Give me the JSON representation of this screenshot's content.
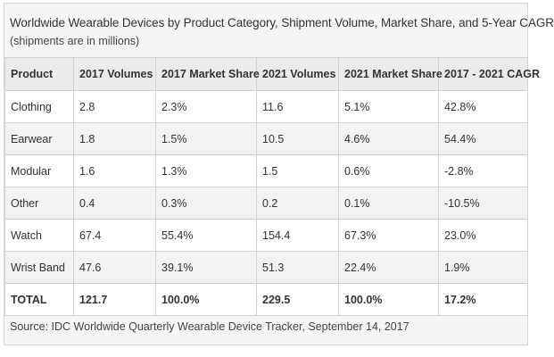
{
  "chart_data": {
    "type": "table",
    "title": "Worldwide Wearable Devices by Product Category, Shipment Volume, Market Share, and 5-Year CAGR",
    "subtitle": "(shipments are in millions)",
    "columns": [
      "Product",
      "2017 Volumes",
      "2017 Market Share",
      "2021 Volumes",
      "2021 Market Share",
      "2017 - 2021 CAGR"
    ],
    "rows": [
      [
        "Clothing",
        "2.8",
        "2.3%",
        "11.6",
        "5.1%",
        "42.8%"
      ],
      [
        "Earwear",
        "1.8",
        "1.5%",
        "10.5",
        "4.6%",
        "54.4%"
      ],
      [
        "Modular",
        "1.6",
        "1.3%",
        "1.5",
        "0.6%",
        "-2.8%"
      ],
      [
        "Other",
        "0.4",
        "0.3%",
        "0.2",
        "0.1%",
        "-10.5%"
      ],
      [
        "Watch",
        "67.4",
        "55.4%",
        "154.4",
        "67.3%",
        "23.0%"
      ],
      [
        "Wrist Band",
        "47.6",
        "39.1%",
        "51.3",
        "22.4%",
        "1.9%"
      ]
    ],
    "total_row": [
      "TOTAL",
      "121.7",
      "100.0%",
      "229.5",
      "100.0%",
      "17.2%"
    ],
    "source": "Source: IDC Worldwide Quarterly Wearable Device Tracker, September 14, 2017"
  }
}
